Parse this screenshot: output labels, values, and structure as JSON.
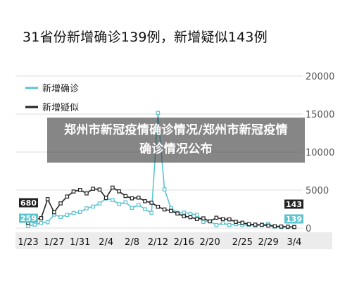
{
  "page_title": "31省份新增确诊139例，新增疑似143例",
  "overlay_text": "郑州市新冠疫情确诊情况/郑州市新冠疫情确诊情况公布",
  "colors": {
    "confirmed": "#5bc4cf",
    "suspected": "#222222",
    "grid": "#dddddd",
    "axis_band": "#ececec"
  },
  "chart_data": {
    "type": "line",
    "title": "31省份新增确诊139例，新增疑似143例",
    "xlabel": "",
    "ylabel": "",
    "ylim": [
      0,
      20000
    ],
    "y_ticks": [
      "0",
      "5000",
      "10000",
      "15000",
      "20000"
    ],
    "x_ticks": [
      "1/23",
      "1/27",
      "1/31",
      "2/4",
      "2/8",
      "2/12",
      "2/16",
      "2/20",
      "2/25",
      "2/29",
      "3/4"
    ],
    "grid": true,
    "legend_position": "top-left",
    "x": [
      "1/23",
      "1/24",
      "1/25",
      "1/26",
      "1/27",
      "1/28",
      "1/29",
      "1/30",
      "1/31",
      "2/1",
      "2/2",
      "2/3",
      "2/4",
      "2/5",
      "2/6",
      "2/7",
      "2/8",
      "2/9",
      "2/10",
      "2/11",
      "2/12",
      "2/13",
      "2/14",
      "2/15",
      "2/16",
      "2/17",
      "2/18",
      "2/19",
      "2/20",
      "2/21",
      "2/22",
      "2/23",
      "2/24",
      "2/25",
      "2/26",
      "2/27",
      "2/28",
      "2/29",
      "3/1",
      "3/2",
      "3/3",
      "3/4"
    ],
    "series": [
      {
        "name": "新增确诊",
        "key": "confirmed",
        "values": [
          259,
          444,
          688,
          769,
          1771,
          1459,
          1737,
          1982,
          2102,
          2590,
          2829,
          3235,
          3887,
          3694,
          3143,
          3399,
          2656,
          3062,
          2478,
          2015,
          15152,
          5090,
          2641,
          2009,
          2048,
          1886,
          1749,
          820,
          889,
          397,
          648,
          409,
          508,
          406,
          433,
          327,
          427,
          573,
          202,
          125,
          119,
          139
        ],
        "end_label": "139"
      },
      {
        "name": "新增疑似",
        "key": "suspected",
        "values": [
          680,
          1118,
          1309,
          3806,
          2077,
          3248,
          4148,
          4812,
          5019,
          4562,
          5173,
          5072,
          3971,
          5328,
          4833,
          4214,
          3916,
          4008,
          3536,
          3342,
          2807,
          2450,
          2277,
          1918,
          1563,
          1432,
          1185,
          1277,
          892,
          1361,
          1191,
          1144,
          822,
          708,
          515,
          452,
          428,
          327,
          240,
          204,
          181,
          143
        ],
        "end_label": "143"
      }
    ],
    "start_labels": {
      "confirmed": "259",
      "suspected": "680"
    }
  }
}
